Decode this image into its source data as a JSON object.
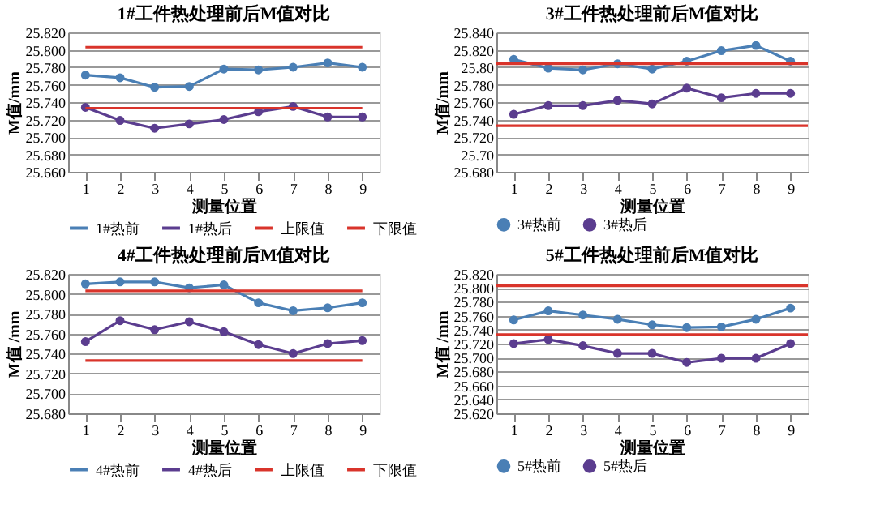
{
  "chart_data": [
    {
      "type": "line",
      "title": "1#工件热处理前后M值对比",
      "xlabel": "测量位置",
      "ylabel": "M值/mm",
      "categories": [
        "1",
        "2",
        "3",
        "4",
        "5",
        "6",
        "7",
        "8",
        "9"
      ],
      "ylim": [
        25.66,
        25.82
      ],
      "yticks": [
        {
          "value": 25.66,
          "label": "25.660"
        },
        {
          "value": 25.68,
          "label": "25.680"
        },
        {
          "value": 25.7,
          "label": "25.700"
        },
        {
          "value": 25.72,
          "label": "25.720"
        },
        {
          "value": 25.74,
          "label": "25.740"
        },
        {
          "value": 25.76,
          "label": "25.760"
        },
        {
          "value": 25.78,
          "label": "25.780"
        },
        {
          "value": 25.8,
          "label": "25.800"
        },
        {
          "value": 25.82,
          "label": "25.820"
        }
      ],
      "grid": "y",
      "legend": "bottom",
      "marker": "circle",
      "series": [
        {
          "name": "1#热前",
          "color": "#4a7fb5",
          "values": [
            25.771,
            25.768,
            25.757,
            25.758,
            25.778,
            25.777,
            25.78,
            25.785,
            25.78
          ]
        },
        {
          "name": "1#热后",
          "color": "#5b3d8f",
          "values": [
            25.734,
            25.719,
            25.71,
            25.715,
            25.72,
            25.729,
            25.735,
            25.723,
            25.723
          ]
        },
        {
          "name": "上限值",
          "color": "#d9342b",
          "marker": "none",
          "values": [
            25.803,
            25.803,
            25.803,
            25.803,
            25.803,
            25.803,
            25.803,
            25.803,
            25.803
          ]
        },
        {
          "name": "下限值",
          "color": "#d9342b",
          "marker": "none",
          "values": [
            25.733,
            25.733,
            25.733,
            25.733,
            25.733,
            25.733,
            25.733,
            25.733,
            25.733
          ]
        }
      ]
    },
    {
      "type": "line",
      "title": "3#工件热处理前后M值对比",
      "xlabel": "测量位置",
      "ylabel": "M值/mm",
      "categories": [
        "1",
        "2",
        "3",
        "4",
        "5",
        "6",
        "7",
        "8",
        "9"
      ],
      "ylim": [
        25.68,
        25.84
      ],
      "yticks": [
        {
          "value": 25.68,
          "label": "25.680"
        },
        {
          "value": 25.7,
          "label": "25.70"
        },
        {
          "value": 25.72,
          "label": "25.720"
        },
        {
          "value": 25.74,
          "label": "25.740"
        },
        {
          "value": 25.76,
          "label": "25.760"
        },
        {
          "value": 25.78,
          "label": "25.780"
        },
        {
          "value": 25.8,
          "label": "25.80"
        },
        {
          "value": 25.82,
          "label": "25.820"
        },
        {
          "value": 25.84,
          "label": "25.840"
        }
      ],
      "grid": "y",
      "legend": "bottom",
      "marker": "circle",
      "series": [
        {
          "name": "3#热前",
          "color": "#4a7fb5",
          "values": [
            25.809,
            25.799,
            25.797,
            25.804,
            25.798,
            25.807,
            25.819,
            25.825,
            25.807
          ]
        },
        {
          "name": "3#热后",
          "color": "#5b3d8f",
          "values": [
            25.746,
            25.756,
            25.756,
            25.762,
            25.758,
            25.776,
            25.765,
            25.77,
            25.77
          ]
        }
      ],
      "ref_lines": [
        {
          "axis": "y",
          "value": 25.804,
          "color": "#d9342b"
        },
        {
          "axis": "y",
          "value": 25.733,
          "color": "#d9342b"
        }
      ]
    },
    {
      "type": "line",
      "title": "4#工件热处理前后M值对比",
      "xlabel": "测量位置",
      "ylabel": "M值 /mm",
      "categories": [
        "1",
        "2",
        "3",
        "4",
        "5",
        "6",
        "7",
        "8",
        "9"
      ],
      "ylim": [
        25.68,
        25.82
      ],
      "yticks": [
        {
          "value": 25.68,
          "label": "25.680"
        },
        {
          "value": 25.7,
          "label": "25.700"
        },
        {
          "value": 25.72,
          "label": "25.720"
        },
        {
          "value": 25.74,
          "label": "25.740"
        },
        {
          "value": 25.76,
          "label": "25.760"
        },
        {
          "value": 25.78,
          "label": "25.780"
        },
        {
          "value": 25.8,
          "label": "25.800"
        },
        {
          "value": 25.82,
          "label": "25.820"
        }
      ],
      "grid": "y",
      "legend": "bottom",
      "marker": "circle",
      "series": [
        {
          "name": "4#热前",
          "color": "#4a7fb5",
          "values": [
            25.81,
            25.812,
            25.812,
            25.806,
            25.809,
            25.791,
            25.783,
            25.786,
            25.791
          ]
        },
        {
          "name": "4#热后",
          "color": "#5b3d8f",
          "values": [
            25.752,
            25.773,
            25.764,
            25.772,
            25.762,
            25.749,
            25.74,
            25.75,
            25.753
          ]
        },
        {
          "name": "上限值",
          "color": "#d9342b",
          "marker": "none",
          "values": [
            25.803,
            25.803,
            25.803,
            25.803,
            25.803,
            25.803,
            25.803,
            25.803,
            25.803
          ]
        },
        {
          "name": "下限值",
          "color": "#d9342b",
          "marker": "none",
          "values": [
            25.733,
            25.733,
            25.733,
            25.733,
            25.733,
            25.733,
            25.733,
            25.733,
            25.733
          ]
        }
      ]
    },
    {
      "type": "line",
      "title": "5#工件热处理前后M值对比",
      "xlabel": "测量位置",
      "ylabel": "M值 /mm",
      "categories": [
        "1",
        "2",
        "3",
        "4",
        "5",
        "6",
        "7",
        "8",
        "9"
      ],
      "ylim": [
        25.62,
        25.82
      ],
      "yticks": [
        {
          "value": 25.62,
          "label": "25.620"
        },
        {
          "value": 25.64,
          "label": "25.640"
        },
        {
          "value": 25.66,
          "label": "25.660"
        },
        {
          "value": 25.68,
          "label": "25.680"
        },
        {
          "value": 25.7,
          "label": "25.700"
        },
        {
          "value": 25.72,
          "label": "25.720"
        },
        {
          "value": 25.74,
          "label": "25.740"
        },
        {
          "value": 25.76,
          "label": "25.760"
        },
        {
          "value": 25.78,
          "label": "25.780"
        },
        {
          "value": 25.8,
          "label": "25.800"
        },
        {
          "value": 25.82,
          "label": "25.820"
        }
      ],
      "grid": "y",
      "legend": "bottom",
      "marker": "circle",
      "series": [
        {
          "name": "5#热前",
          "color": "#4a7fb5",
          "values": [
            25.754,
            25.767,
            25.761,
            25.755,
            25.747,
            25.743,
            25.744,
            25.755,
            25.771
          ]
        },
        {
          "name": "5#热后",
          "color": "#5b3d8f",
          "values": [
            25.72,
            25.726,
            25.717,
            25.706,
            25.706,
            25.693,
            25.699,
            25.699,
            25.72
          ]
        }
      ],
      "ref_lines": [
        {
          "axis": "y",
          "value": 25.803,
          "color": "#d9342b"
        },
        {
          "axis": "y",
          "value": 25.733,
          "color": "#d9342b"
        }
      ]
    }
  ]
}
